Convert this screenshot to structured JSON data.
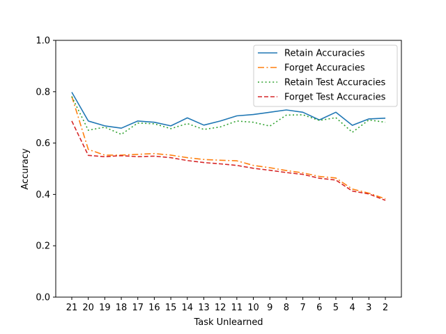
{
  "chart_data": {
    "type": "line",
    "title": "",
    "xlabel": "Task Unlearned",
    "ylabel": "Accuracy",
    "ylim": [
      0.0,
      1.0
    ],
    "yticks": [
      "0.0",
      "0.2",
      "0.4",
      "0.6",
      "0.8",
      "1.0"
    ],
    "grid": false,
    "legend_position": "top-right",
    "categories": [
      "21",
      "20",
      "19",
      "18",
      "17",
      "16",
      "15",
      "14",
      "13",
      "12",
      "11",
      "10",
      "9",
      "8",
      "7",
      "6",
      "5",
      "4",
      "3",
      "2"
    ],
    "series": [
      {
        "name": "Retain Accuracies",
        "color": "#1f77b4",
        "dash": "solid",
        "values": [
          0.798,
          0.686,
          0.667,
          0.658,
          0.686,
          0.681,
          0.667,
          0.698,
          0.67,
          0.686,
          0.706,
          0.711,
          0.72,
          0.729,
          0.72,
          0.69,
          0.72,
          0.669,
          0.694,
          0.697
        ]
      },
      {
        "name": "Forget Accuracies",
        "color": "#ff7f0e",
        "dash": "dashdot",
        "values": [
          0.782,
          0.575,
          0.553,
          0.553,
          0.556,
          0.559,
          0.553,
          0.543,
          0.536,
          0.533,
          0.531,
          0.513,
          0.504,
          0.493,
          0.484,
          0.47,
          0.464,
          0.421,
          0.405,
          0.383
        ]
      },
      {
        "name": "Retain Test Accuracies",
        "color": "#2ca02c",
        "dash": "dotted",
        "values": [
          0.781,
          0.65,
          0.662,
          0.634,
          0.678,
          0.675,
          0.656,
          0.676,
          0.653,
          0.663,
          0.686,
          0.681,
          0.666,
          0.709,
          0.71,
          0.688,
          0.699,
          0.642,
          0.69,
          0.681
        ]
      },
      {
        "name": "Forget Test Accuracies",
        "color": "#d62728",
        "dash": "dashed",
        "values": [
          0.686,
          0.552,
          0.547,
          0.551,
          0.547,
          0.549,
          0.543,
          0.532,
          0.524,
          0.519,
          0.513,
          0.502,
          0.494,
          0.485,
          0.478,
          0.463,
          0.456,
          0.413,
          0.402,
          0.377
        ]
      }
    ]
  }
}
